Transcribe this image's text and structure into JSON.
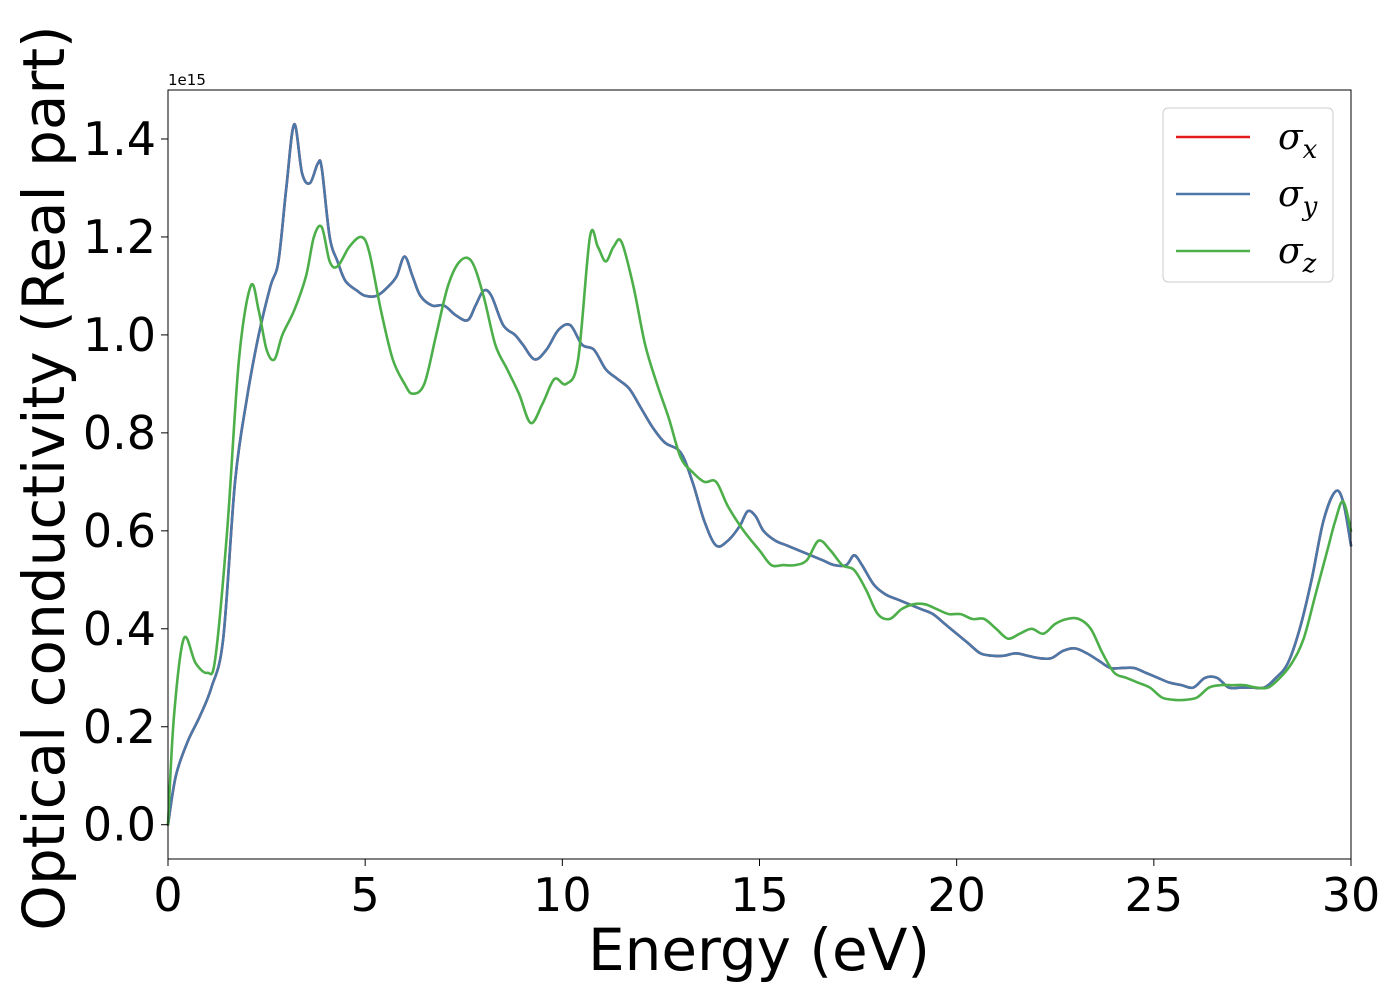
{
  "chart_data": {
    "type": "line",
    "xlabel": "Energy (eV)",
    "ylabel": "Optical conductivity (Real part)",
    "y_scale_label": "1e15",
    "xlim": [
      0,
      30
    ],
    "ylim": [
      -0.07,
      1.5
    ],
    "xticks": [
      0,
      5,
      10,
      15,
      20,
      25,
      30
    ],
    "yticks": [
      0.0,
      0.2,
      0.4,
      0.6,
      0.8,
      1.0,
      1.2,
      1.4
    ],
    "grid": false,
    "legend_position": "top-right",
    "series": [
      {
        "name": "σx",
        "base": "σ",
        "sub": "x",
        "color": "#e41a1c",
        "x": [
          0,
          0.2,
          0.5,
          0.8,
          1.1,
          1.4,
          1.7,
          2.0,
          2.3,
          2.6,
          2.8,
          3.0,
          3.2,
          3.4,
          3.6,
          3.8,
          3.9,
          4.1,
          4.3,
          4.5,
          4.8,
          5.0,
          5.3,
          5.6,
          5.8,
          6.0,
          6.2,
          6.4,
          6.7,
          7.0,
          7.3,
          7.6,
          7.8,
          8.0,
          8.2,
          8.5,
          8.8,
          9.0,
          9.3,
          9.6,
          9.9,
          10.2,
          10.5,
          10.8,
          11.1,
          11.4,
          11.7,
          12.0,
          12.3,
          12.6,
          13.0,
          13.3,
          13.6,
          13.9,
          14.2,
          14.5,
          14.7,
          14.9,
          15.1,
          15.4,
          15.7,
          16.0,
          16.3,
          16.6,
          16.9,
          17.2,
          17.4,
          17.6,
          17.9,
          18.2,
          18.5,
          18.8,
          19.1,
          19.4,
          19.7,
          20.0,
          20.3,
          20.6,
          20.9,
          21.2,
          21.5,
          21.8,
          22.1,
          22.4,
          22.7,
          23.0,
          23.3,
          23.6,
          23.9,
          24.2,
          24.5,
          24.8,
          25.1,
          25.4,
          25.7,
          26.0,
          26.3,
          26.6,
          26.9,
          27.2,
          27.5,
          27.8,
          28.1,
          28.4,
          28.7,
          29.0,
          29.3,
          29.6,
          29.8,
          30.0
        ],
        "y": [
          0.0,
          0.1,
          0.17,
          0.22,
          0.28,
          0.38,
          0.7,
          0.87,
          1.0,
          1.1,
          1.15,
          1.3,
          1.43,
          1.33,
          1.31,
          1.35,
          1.34,
          1.2,
          1.15,
          1.11,
          1.09,
          1.08,
          1.08,
          1.1,
          1.12,
          1.16,
          1.12,
          1.08,
          1.06,
          1.06,
          1.04,
          1.03,
          1.06,
          1.09,
          1.08,
          1.02,
          1.0,
          0.98,
          0.95,
          0.97,
          1.01,
          1.02,
          0.98,
          0.97,
          0.93,
          0.91,
          0.89,
          0.85,
          0.81,
          0.78,
          0.76,
          0.7,
          0.62,
          0.57,
          0.58,
          0.61,
          0.64,
          0.63,
          0.6,
          0.58,
          0.57,
          0.56,
          0.55,
          0.54,
          0.53,
          0.53,
          0.55,
          0.53,
          0.49,
          0.47,
          0.46,
          0.45,
          0.44,
          0.43,
          0.41,
          0.39,
          0.37,
          0.35,
          0.345,
          0.345,
          0.35,
          0.345,
          0.34,
          0.34,
          0.355,
          0.36,
          0.35,
          0.335,
          0.32,
          0.32,
          0.32,
          0.31,
          0.3,
          0.29,
          0.285,
          0.28,
          0.3,
          0.3,
          0.28,
          0.28,
          0.28,
          0.28,
          0.3,
          0.33,
          0.4,
          0.5,
          0.62,
          0.68,
          0.66,
          0.57
        ]
      },
      {
        "name": "σy",
        "base": "σ",
        "sub": "y",
        "color": "#4a78a8",
        "x": [
          0,
          0.2,
          0.5,
          0.8,
          1.1,
          1.4,
          1.7,
          2.0,
          2.3,
          2.6,
          2.8,
          3.0,
          3.2,
          3.4,
          3.6,
          3.8,
          3.9,
          4.1,
          4.3,
          4.5,
          4.8,
          5.0,
          5.3,
          5.6,
          5.8,
          6.0,
          6.2,
          6.4,
          6.7,
          7.0,
          7.3,
          7.6,
          7.8,
          8.0,
          8.2,
          8.5,
          8.8,
          9.0,
          9.3,
          9.6,
          9.9,
          10.2,
          10.5,
          10.8,
          11.1,
          11.4,
          11.7,
          12.0,
          12.3,
          12.6,
          13.0,
          13.3,
          13.6,
          13.9,
          14.2,
          14.5,
          14.7,
          14.9,
          15.1,
          15.4,
          15.7,
          16.0,
          16.3,
          16.6,
          16.9,
          17.2,
          17.4,
          17.6,
          17.9,
          18.2,
          18.5,
          18.8,
          19.1,
          19.4,
          19.7,
          20.0,
          20.3,
          20.6,
          20.9,
          21.2,
          21.5,
          21.8,
          22.1,
          22.4,
          22.7,
          23.0,
          23.3,
          23.6,
          23.9,
          24.2,
          24.5,
          24.8,
          25.1,
          25.4,
          25.7,
          26.0,
          26.3,
          26.6,
          26.9,
          27.2,
          27.5,
          27.8,
          28.1,
          28.4,
          28.7,
          29.0,
          29.3,
          29.6,
          29.8,
          30.0
        ],
        "y": [
          0.0,
          0.1,
          0.17,
          0.22,
          0.28,
          0.38,
          0.7,
          0.87,
          1.0,
          1.1,
          1.15,
          1.3,
          1.43,
          1.33,
          1.31,
          1.35,
          1.34,
          1.2,
          1.15,
          1.11,
          1.09,
          1.08,
          1.08,
          1.1,
          1.12,
          1.16,
          1.12,
          1.08,
          1.06,
          1.06,
          1.04,
          1.03,
          1.06,
          1.09,
          1.08,
          1.02,
          1.0,
          0.98,
          0.95,
          0.97,
          1.01,
          1.02,
          0.98,
          0.97,
          0.93,
          0.91,
          0.89,
          0.85,
          0.81,
          0.78,
          0.76,
          0.7,
          0.62,
          0.57,
          0.58,
          0.61,
          0.64,
          0.63,
          0.6,
          0.58,
          0.57,
          0.56,
          0.55,
          0.54,
          0.53,
          0.53,
          0.55,
          0.53,
          0.49,
          0.47,
          0.46,
          0.45,
          0.44,
          0.43,
          0.41,
          0.39,
          0.37,
          0.35,
          0.345,
          0.345,
          0.35,
          0.345,
          0.34,
          0.34,
          0.355,
          0.36,
          0.35,
          0.335,
          0.32,
          0.32,
          0.32,
          0.31,
          0.3,
          0.29,
          0.285,
          0.28,
          0.3,
          0.3,
          0.28,
          0.28,
          0.28,
          0.28,
          0.3,
          0.33,
          0.4,
          0.5,
          0.62,
          0.68,
          0.66,
          0.57
        ]
      },
      {
        "name": "σz",
        "base": "σ",
        "sub": "z",
        "color": "#4daf4a",
        "x": [
          0,
          0.15,
          0.4,
          0.7,
          1.0,
          1.2,
          1.5,
          1.8,
          2.1,
          2.3,
          2.5,
          2.7,
          2.9,
          3.2,
          3.5,
          3.7,
          3.9,
          4.1,
          4.3,
          4.6,
          4.9,
          5.1,
          5.4,
          5.7,
          6.0,
          6.2,
          6.5,
          6.8,
          7.1,
          7.4,
          7.7,
          8.0,
          8.3,
          8.6,
          8.9,
          9.2,
          9.5,
          9.8,
          10.1,
          10.4,
          10.7,
          10.9,
          11.1,
          11.3,
          11.5,
          11.8,
          12.1,
          12.4,
          12.7,
          13.0,
          13.3,
          13.6,
          13.9,
          14.2,
          14.6,
          15.0,
          15.3,
          15.6,
          15.9,
          16.2,
          16.5,
          16.8,
          17.1,
          17.4,
          17.7,
          18.0,
          18.3,
          18.6,
          18.9,
          19.2,
          19.5,
          19.8,
          20.1,
          20.4,
          20.7,
          21.0,
          21.3,
          21.6,
          21.9,
          22.2,
          22.5,
          22.8,
          23.1,
          23.4,
          23.7,
          24.0,
          24.3,
          24.6,
          24.9,
          25.2,
          25.5,
          25.8,
          26.1,
          26.4,
          26.7,
          27.0,
          27.3,
          27.6,
          27.9,
          28.2,
          28.5,
          28.8,
          29.1,
          29.4,
          29.6,
          29.8,
          30.0
        ],
        "y": [
          0.0,
          0.22,
          0.38,
          0.33,
          0.31,
          0.34,
          0.6,
          0.95,
          1.1,
          1.05,
          0.97,
          0.95,
          1.0,
          1.05,
          1.12,
          1.2,
          1.22,
          1.15,
          1.14,
          1.18,
          1.2,
          1.17,
          1.05,
          0.95,
          0.9,
          0.88,
          0.9,
          1.0,
          1.1,
          1.15,
          1.15,
          1.08,
          0.98,
          0.93,
          0.88,
          0.82,
          0.86,
          0.91,
          0.9,
          0.95,
          1.2,
          1.18,
          1.15,
          1.18,
          1.19,
          1.1,
          0.98,
          0.9,
          0.83,
          0.75,
          0.72,
          0.7,
          0.7,
          0.65,
          0.6,
          0.56,
          0.53,
          0.53,
          0.53,
          0.54,
          0.58,
          0.56,
          0.53,
          0.52,
          0.48,
          0.43,
          0.42,
          0.44,
          0.45,
          0.45,
          0.44,
          0.43,
          0.43,
          0.42,
          0.42,
          0.4,
          0.38,
          0.39,
          0.4,
          0.39,
          0.41,
          0.42,
          0.42,
          0.4,
          0.35,
          0.31,
          0.3,
          0.29,
          0.28,
          0.26,
          0.255,
          0.255,
          0.26,
          0.28,
          0.285,
          0.285,
          0.285,
          0.28,
          0.28,
          0.3,
          0.33,
          0.38,
          0.47,
          0.56,
          0.62,
          0.66,
          0.6
        ]
      }
    ]
  }
}
